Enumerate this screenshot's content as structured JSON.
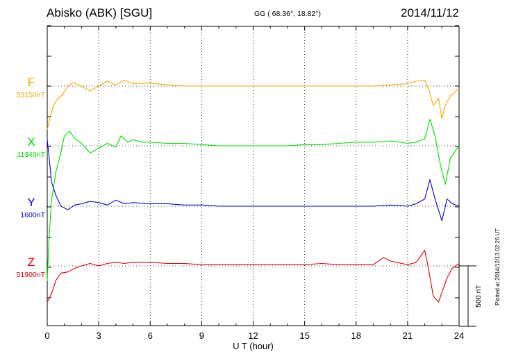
{
  "header": {
    "station": "Abisko (ABK)  [SGU]",
    "coords": "GG ( 68.36°,  18.82°)",
    "date": "2014/11/12",
    "plotted": "Plotted at 2014/12/13 02:26 UT"
  },
  "colors": {
    "F": "#f5a800",
    "X": "#00dd00",
    "Y": "#0000cc",
    "Z": "#dd0000"
  },
  "chart_data": {
    "type": "line",
    "title": "Abisko (ABK)  [SGU]",
    "xlabel": "U T (hour)",
    "xlim": [
      0,
      24
    ],
    "xticks": [
      "0",
      "3",
      "6",
      "9",
      "12",
      "15",
      "18",
      "21",
      "24"
    ],
    "grid": "dotted vertical every 3 h; dotted baseline per component",
    "scale_bar_label": "500 nT",
    "scale_nT": 500,
    "series": [
      {
        "name": "F",
        "color": "#f5a800",
        "baseline_label": "53150nT",
        "x": [
          0,
          0.2,
          0.4,
          0.6,
          0.9,
          1.2,
          1.5,
          2.0,
          2.5,
          3.0,
          3.5,
          4.0,
          4.5,
          5.0,
          6.0,
          7.0,
          8.0,
          9.0,
          10.0,
          11.0,
          12.0,
          13.0,
          14.0,
          15.0,
          16.0,
          17.0,
          18.0,
          19.0,
          20.0,
          21.0,
          21.5,
          22.0,
          22.3,
          22.5,
          22.8,
          23.0,
          23.2,
          23.5,
          24.0
        ],
        "nT": [
          -360,
          -240,
          -150,
          -110,
          -70,
          0,
          30,
          0,
          -40,
          0,
          40,
          10,
          50,
          20,
          25,
          10,
          0,
          0,
          0,
          0,
          0,
          0,
          0,
          0,
          0,
          0,
          0,
          0,
          10,
          20,
          40,
          50,
          -60,
          -160,
          -100,
          -270,
          -160,
          -80,
          -20
        ]
      },
      {
        "name": "X",
        "color": "#00dd00",
        "baseline_label": "11340nT",
        "x": [
          0,
          0.1,
          0.25,
          0.5,
          0.8,
          1.0,
          1.3,
          1.6,
          2.0,
          2.5,
          3.0,
          3.5,
          4.0,
          4.3,
          4.7,
          5.0,
          5.5,
          6.0,
          7.0,
          8.0,
          9.0,
          10.0,
          11.0,
          12.0,
          13.0,
          14.0,
          15.0,
          16.0,
          17.0,
          18.0,
          19.0,
          20.0,
          21.0,
          21.5,
          22.0,
          22.3,
          22.6,
          22.9,
          23.2,
          23.5,
          24.0
        ],
        "nT": [
          -1120,
          -780,
          -450,
          -220,
          -50,
          80,
          120,
          60,
          20,
          -60,
          -20,
          20,
          -10,
          80,
          30,
          50,
          30,
          30,
          20,
          20,
          10,
          0,
          0,
          0,
          0,
          0,
          10,
          10,
          20,
          30,
          30,
          40,
          20,
          30,
          60,
          220,
          80,
          -150,
          -320,
          -100,
          0
        ]
      },
      {
        "name": "Y",
        "color": "#0000cc",
        "baseline_label": "1600nT",
        "x": [
          0,
          0.1,
          0.25,
          0.5,
          0.8,
          1.2,
          1.6,
          2.0,
          2.5,
          3.0,
          3.5,
          4.0,
          4.5,
          5.0,
          6.0,
          7.0,
          8.0,
          9.0,
          10.0,
          11.0,
          12.0,
          13.0,
          14.0,
          15.0,
          16.0,
          17.0,
          18.0,
          19.0,
          20.0,
          21.0,
          21.5,
          22.0,
          22.3,
          22.6,
          23.0,
          23.3,
          23.6,
          24.0
        ],
        "nT": [
          550,
          420,
          200,
          90,
          0,
          -30,
          10,
          20,
          40,
          30,
          10,
          50,
          20,
          30,
          20,
          20,
          10,
          10,
          0,
          0,
          0,
          0,
          0,
          0,
          0,
          0,
          0,
          0,
          10,
          0,
          20,
          60,
          220,
          60,
          -120,
          60,
          20,
          0
        ]
      },
      {
        "name": "Z",
        "color": "#dd0000",
        "baseline_label": "51900nT",
        "x": [
          0,
          0.25,
          0.5,
          0.8,
          1.2,
          1.6,
          2.0,
          2.5,
          3.0,
          3.5,
          4.0,
          4.5,
          5.0,
          6.0,
          7.0,
          8.0,
          9.0,
          10.0,
          11.0,
          12.0,
          13.0,
          14.0,
          15.0,
          16.0,
          17.0,
          18.0,
          19.0,
          19.6,
          20.0,
          21.0,
          21.5,
          22.0,
          22.2,
          22.5,
          22.8,
          23.0,
          23.3,
          23.6,
          24.0
        ],
        "nT": [
          -300,
          -230,
          -120,
          -60,
          -50,
          -20,
          0,
          20,
          0,
          20,
          30,
          20,
          30,
          30,
          20,
          20,
          10,
          10,
          10,
          10,
          10,
          10,
          10,
          20,
          10,
          10,
          10,
          70,
          40,
          10,
          30,
          130,
          -10,
          -250,
          -300,
          -220,
          -100,
          -20,
          20
        ]
      }
    ]
  }
}
